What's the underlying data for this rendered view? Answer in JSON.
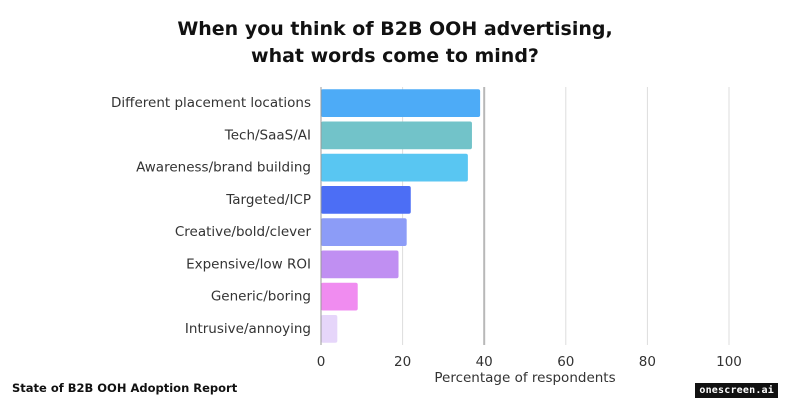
{
  "chart_data": {
    "type": "bar",
    "orientation": "horizontal",
    "title": "When you think of B2B OOH advertising,\nwhat words come to mind?",
    "categories": [
      "Different placement locations",
      "Tech/SaaS/AI",
      "Awareness/brand building",
      "Targeted/ICP",
      "Creative/bold/clever",
      "Expensive/low ROI",
      "Generic/boring",
      "Intrusive/annoying"
    ],
    "values": [
      39,
      37,
      36,
      22,
      21,
      19,
      9,
      4
    ],
    "colors": [
      "#4dabf7",
      "#72c3c9",
      "#59c6f2",
      "#4c6ef5",
      "#8c9cf7",
      "#c08ff2",
      "#f08cf0",
      "#e6d6fa"
    ],
    "xlabel": "Percentage of respondents",
    "ylabel": "",
    "xlim": [
      0,
      100
    ],
    "xticks": [
      0,
      20,
      40,
      60,
      80,
      100
    ],
    "grid": true
  },
  "footer": {
    "source": "State of B2B OOH Adoption Report",
    "brand": "onescreen.ai"
  }
}
